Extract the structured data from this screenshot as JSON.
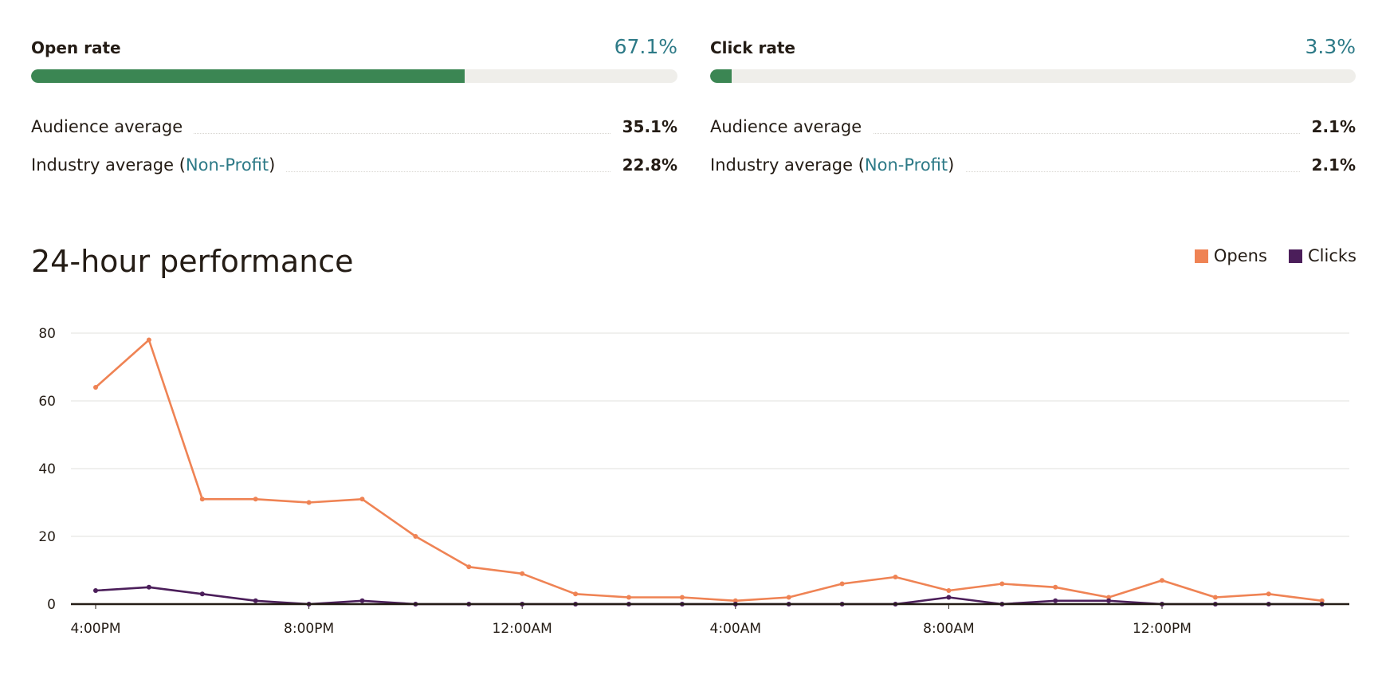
{
  "open_rate": {
    "label": "Open rate",
    "value": "67.1%",
    "fill_percent": 67.1,
    "audience_label": "Audience average",
    "audience_value": "35.1%",
    "industry_label_pre": "Industry average (",
    "industry_link": "Non-Profit",
    "industry_label_post": ")",
    "industry_value": "22.8%"
  },
  "click_rate": {
    "label": "Click rate",
    "value": "3.3%",
    "fill_percent": 3.3,
    "audience_label": "Audience average",
    "audience_value": "2.1%",
    "industry_label_pre": "Industry average (",
    "industry_link": "Non-Profit",
    "industry_label_post": ")",
    "industry_value": "2.1%"
  },
  "performance": {
    "title": "24-hour performance",
    "legend": [
      {
        "name": "Opens",
        "color": "#ef8354"
      },
      {
        "name": "Clicks",
        "color": "#4b1e5a"
      }
    ]
  },
  "colors": {
    "accent": "#2d7a87",
    "bar_fill": "#3b8653",
    "bar_track": "#efeeea",
    "opens": "#ef8354",
    "clicks": "#4b1e5a"
  },
  "chart_data": {
    "type": "line",
    "x": [
      "4:00PM",
      "5:00PM",
      "6:00PM",
      "7:00PM",
      "8:00PM",
      "9:00PM",
      "10:00PM",
      "11:00PM",
      "12:00AM",
      "1:00AM",
      "2:00AM",
      "3:00AM",
      "4:00AM",
      "5:00AM",
      "6:00AM",
      "7:00AM",
      "8:00AM",
      "9:00AM",
      "10:00AM",
      "11:00AM",
      "12:00PM",
      "1:00PM",
      "2:00PM",
      "3:00PM"
    ],
    "x_tick_labels": [
      "4:00PM",
      "8:00PM",
      "12:00AM",
      "4:00AM",
      "8:00AM",
      "12:00PM"
    ],
    "y_ticks": [
      0,
      20,
      40,
      60,
      80
    ],
    "ylim": [
      0,
      80
    ],
    "series": [
      {
        "name": "Opens",
        "values": [
          64,
          78,
          31,
          31,
          30,
          31,
          20,
          11,
          9,
          3,
          2,
          2,
          1,
          2,
          6,
          8,
          4,
          6,
          5,
          2,
          7,
          2,
          3,
          1
        ]
      },
      {
        "name": "Clicks",
        "values": [
          4,
          5,
          3,
          1,
          0,
          1,
          0,
          0,
          0,
          0,
          0,
          0,
          0,
          0,
          0,
          0,
          2,
          0,
          1,
          1,
          0,
          0,
          0,
          0
        ]
      }
    ],
    "grid": true,
    "legend_position": "top-right"
  }
}
